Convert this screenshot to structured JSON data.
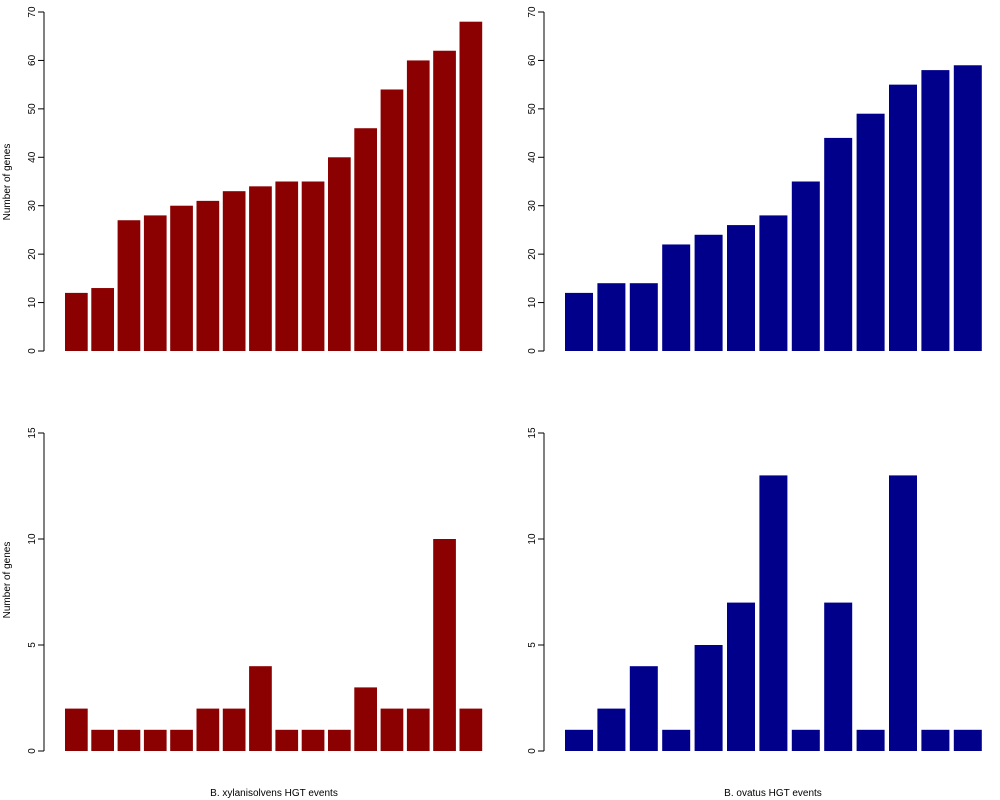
{
  "colors": {
    "xylanisolvens": "#8b0000",
    "ovatus": "#00008b"
  },
  "chart_data": [
    {
      "type": "bar",
      "panel": "top-left",
      "ylabel": "Number of genes",
      "xlabel": "",
      "ylim": [
        0,
        70
      ],
      "yticks": [
        0,
        10,
        20,
        30,
        40,
        50,
        60,
        70
      ],
      "values": [
        12,
        13,
        27,
        28,
        30,
        31,
        33,
        34,
        35,
        35,
        40,
        46,
        54,
        60,
        62,
        68
      ],
      "color": "#8b0000"
    },
    {
      "type": "bar",
      "panel": "top-right",
      "ylabel": "",
      "xlabel": "",
      "ylim": [
        0,
        70
      ],
      "yticks": [
        0,
        10,
        20,
        30,
        40,
        50,
        60,
        70
      ],
      "values": [
        12,
        14,
        14,
        22,
        24,
        26,
        28,
        35,
        44,
        49,
        55,
        58,
        59
      ],
      "color": "#00008b"
    },
    {
      "type": "bar",
      "panel": "bottom-left",
      "ylabel": "Number of genes",
      "xlabel": "B. xylanisolvens HGT events",
      "ylim": [
        0,
        15
      ],
      "yticks": [
        0,
        5,
        10,
        15
      ],
      "values": [
        2,
        1,
        1,
        1,
        1,
        2,
        2,
        4,
        1,
        1,
        1,
        3,
        2,
        2,
        10,
        2
      ],
      "color": "#8b0000"
    },
    {
      "type": "bar",
      "panel": "bottom-right",
      "ylabel": "",
      "xlabel": "B. ovatus HGT events",
      "ylim": [
        0,
        15
      ],
      "yticks": [
        0,
        5,
        10,
        15
      ],
      "values": [
        1,
        2,
        4,
        1,
        5,
        7,
        13,
        1,
        7,
        1,
        13,
        1,
        1
      ],
      "color": "#00008b"
    }
  ]
}
